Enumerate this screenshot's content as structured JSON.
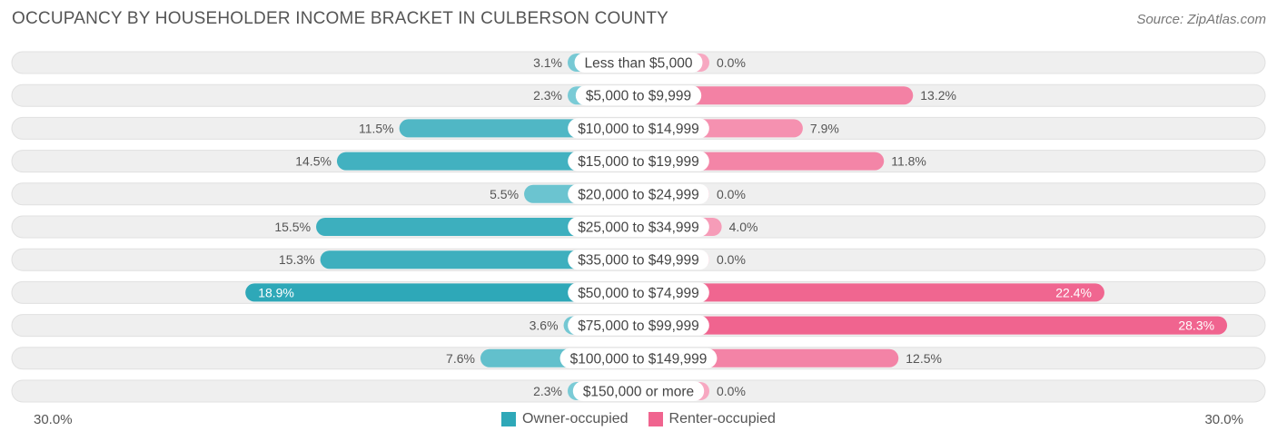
{
  "title": "OCCUPANCY BY HOUSEHOLDER INCOME BRACKET IN CULBERSON COUNTY",
  "source": "Source: ZipAtlas.com",
  "colors": {
    "owner_dark": "#2ea8b8",
    "owner_light": "#85d0da",
    "renter_dark": "#f0648f",
    "renter_light": "#f7a8c1",
    "track": "#efefef"
  },
  "chart_data": {
    "type": "bar",
    "orientation": "diverging-horizontal",
    "title": "OCCUPANCY BY HOUSEHOLDER INCOME BRACKET IN CULBERSON COUNTY",
    "categories": [
      "Less than $5,000",
      "$5,000 to $9,999",
      "$10,000 to $14,999",
      "$15,000 to $19,999",
      "$20,000 to $24,999",
      "$25,000 to $34,999",
      "$35,000 to $49,999",
      "$50,000 to $74,999",
      "$75,000 to $99,999",
      "$100,000 to $149,999",
      "$150,000 or more"
    ],
    "series": [
      {
        "name": "Owner-occupied",
        "values": [
          3.1,
          2.3,
          11.5,
          14.5,
          5.5,
          15.5,
          15.3,
          18.9,
          3.6,
          7.6,
          2.3
        ],
        "labels": [
          "3.1%",
          "2.3%",
          "11.5%",
          "14.5%",
          "5.5%",
          "15.5%",
          "15.3%",
          "18.9%",
          "3.6%",
          "7.6%",
          "2.3%"
        ]
      },
      {
        "name": "Renter-occupied",
        "values": [
          0.0,
          13.2,
          7.9,
          11.8,
          0.0,
          4.0,
          0.0,
          22.4,
          28.3,
          12.5,
          0.0
        ],
        "labels": [
          "0.0%",
          "13.2%",
          "7.9%",
          "11.8%",
          "0.0%",
          "4.0%",
          "0.0%",
          "22.4%",
          "28.3%",
          "12.5%",
          "0.0%"
        ]
      }
    ],
    "xlim": [
      -30,
      30
    ],
    "axis_min_label": "30.0%",
    "axis_max_label": "30.0%",
    "legend_position": "bottom-center"
  }
}
